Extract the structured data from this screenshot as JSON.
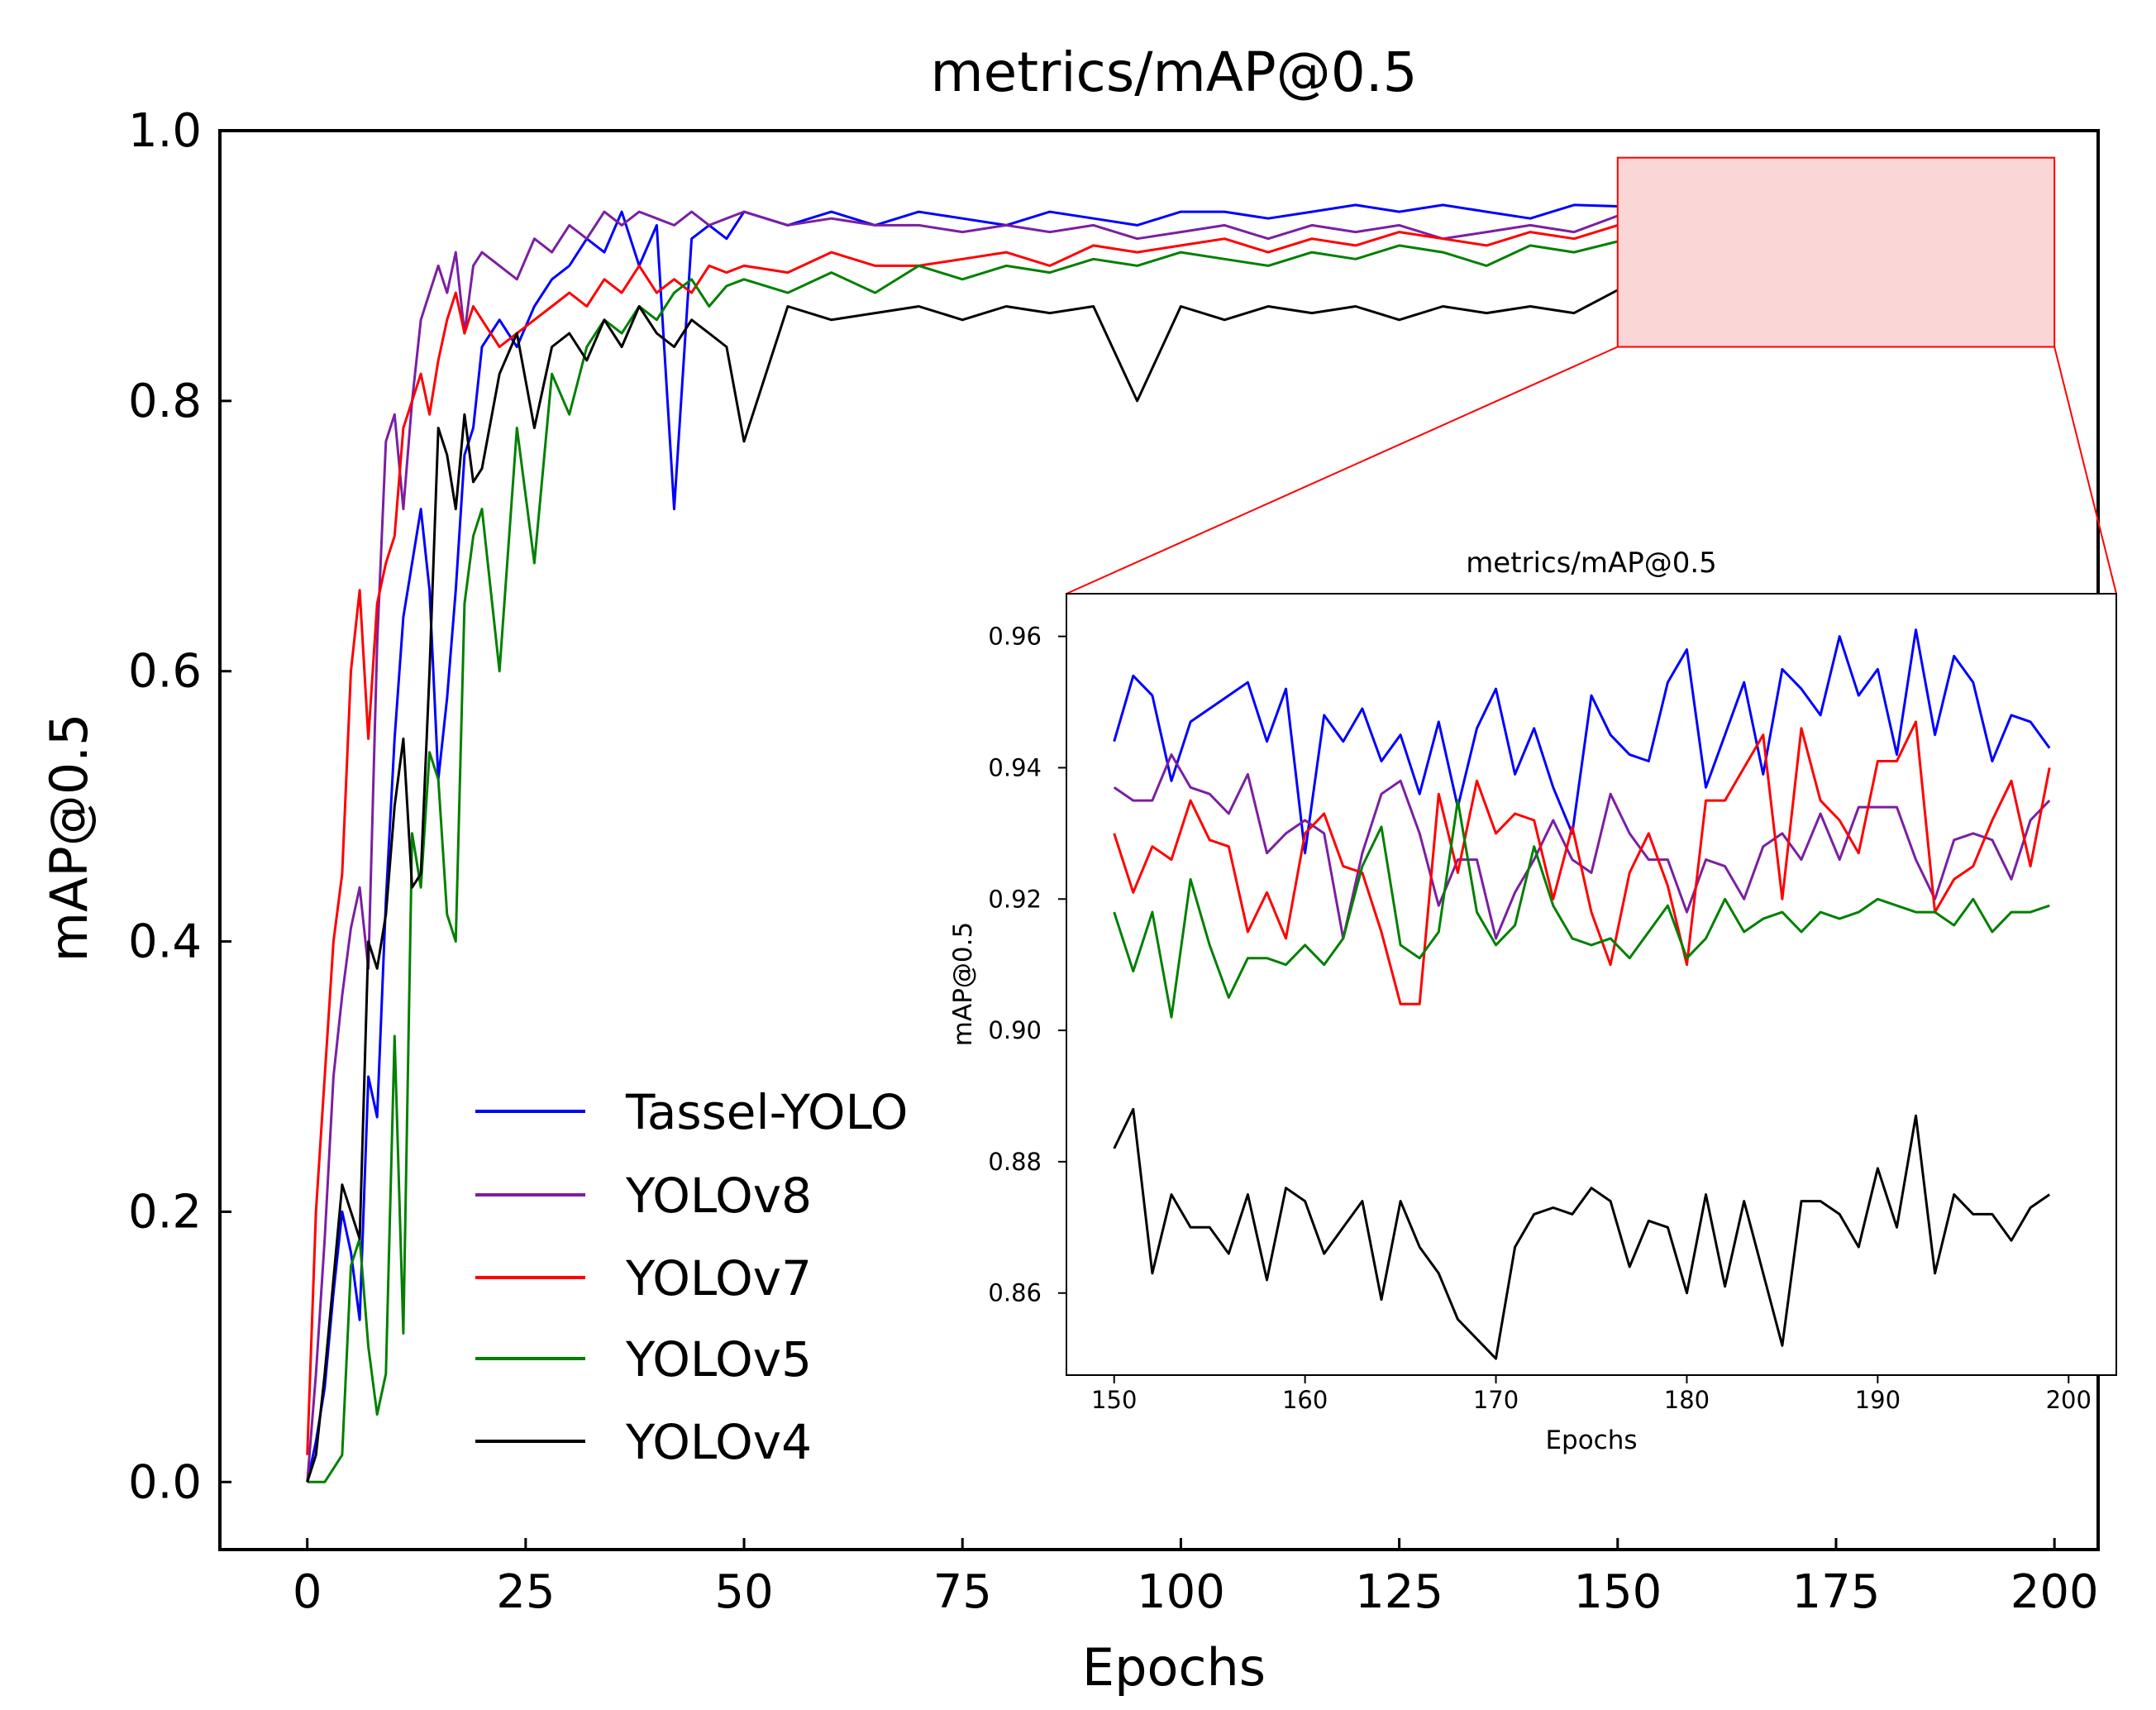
{
  "chart_data": [
    {
      "id": "main",
      "type": "line",
      "title": "metrics/mAP@0.5",
      "xlabel": "Epochs",
      "ylabel": "mAP@0.5",
      "xlim": [
        -10,
        205
      ],
      "ylim": [
        -0.05,
        1.0
      ],
      "xticks": [
        0,
        25,
        50,
        75,
        100,
        125,
        150,
        175,
        200
      ],
      "xtick_labels": [
        "0",
        "25",
        "50",
        "75",
        "100",
        "125",
        "150",
        "175",
        "200"
      ],
      "yticks": [
        0.0,
        0.2,
        0.4,
        0.6,
        0.8,
        1.0
      ],
      "ytick_labels": [
        "0.0",
        "0.2",
        "0.4",
        "0.6",
        "0.8",
        "1.0"
      ],
      "grid": false,
      "legend_position": "lower-left",
      "zoom_region": {
        "x": [
          150,
          200
        ],
        "y": [
          0.84,
          0.98
        ]
      },
      "series": [
        {
          "name": "Tassel-YOLO",
          "color": "#0000ff",
          "x": [
            0,
            1,
            2,
            3,
            4,
            5,
            6,
            7,
            8,
            9,
            10,
            11,
            12,
            13,
            14,
            15,
            16,
            17,
            18,
            19,
            20,
            22,
            24,
            26,
            28,
            30,
            32,
            34,
            36,
            38,
            40,
            42,
            44,
            46,
            48,
            50,
            55,
            60,
            65,
            70,
            75,
            80,
            85,
            90,
            95,
            100,
            105,
            110,
            115,
            120,
            125,
            130,
            135,
            140,
            145,
            150
          ],
          "values": [
            0.0,
            0.03,
            0.07,
            0.14,
            0.2,
            0.17,
            0.12,
            0.3,
            0.27,
            0.43,
            0.55,
            0.64,
            0.68,
            0.72,
            0.66,
            0.52,
            0.58,
            0.66,
            0.76,
            0.78,
            0.84,
            0.86,
            0.84,
            0.87,
            0.89,
            0.9,
            0.92,
            0.91,
            0.94,
            0.9,
            0.93,
            0.72,
            0.92,
            0.93,
            0.92,
            0.94,
            0.93,
            0.94,
            0.93,
            0.94,
            0.935,
            0.93,
            0.94,
            0.935,
            0.93,
            0.94,
            0.94,
            0.935,
            0.94,
            0.945,
            0.94,
            0.945,
            0.94,
            0.935,
            0.945,
            0.944
          ]
        },
        {
          "name": "YOLOv8",
          "color": "#7b1fa2",
          "x": [
            0,
            1,
            2,
            3,
            4,
            5,
            6,
            7,
            8,
            9,
            10,
            11,
            12,
            13,
            14,
            15,
            16,
            17,
            18,
            19,
            20,
            22,
            24,
            26,
            28,
            30,
            32,
            34,
            36,
            38,
            40,
            42,
            44,
            46,
            48,
            50,
            55,
            60,
            65,
            70,
            75,
            80,
            85,
            90,
            95,
            100,
            105,
            110,
            115,
            120,
            125,
            130,
            135,
            140,
            145,
            150
          ],
          "values": [
            0.0,
            0.08,
            0.18,
            0.3,
            0.36,
            0.41,
            0.44,
            0.38,
            0.62,
            0.77,
            0.79,
            0.72,
            0.8,
            0.86,
            0.88,
            0.9,
            0.88,
            0.91,
            0.85,
            0.9,
            0.91,
            0.9,
            0.89,
            0.92,
            0.91,
            0.93,
            0.92,
            0.94,
            0.93,
            0.94,
            0.935,
            0.93,
            0.94,
            0.93,
            0.935,
            0.94,
            0.93,
            0.935,
            0.93,
            0.93,
            0.925,
            0.93,
            0.925,
            0.93,
            0.92,
            0.925,
            0.93,
            0.92,
            0.93,
            0.925,
            0.93,
            0.92,
            0.925,
            0.93,
            0.925,
            0.937
          ]
        },
        {
          "name": "YOLOv7",
          "color": "#ff0000",
          "x": [
            0,
            1,
            2,
            3,
            4,
            5,
            6,
            7,
            8,
            9,
            10,
            11,
            12,
            13,
            14,
            15,
            16,
            17,
            18,
            19,
            20,
            22,
            24,
            26,
            28,
            30,
            32,
            34,
            36,
            38,
            40,
            42,
            44,
            46,
            48,
            50,
            55,
            60,
            65,
            70,
            75,
            80,
            85,
            90,
            95,
            100,
            105,
            110,
            115,
            120,
            125,
            130,
            135,
            140,
            145,
            150
          ],
          "values": [
            0.02,
            0.2,
            0.3,
            0.4,
            0.45,
            0.6,
            0.66,
            0.55,
            0.65,
            0.68,
            0.7,
            0.78,
            0.8,
            0.82,
            0.79,
            0.83,
            0.86,
            0.88,
            0.85,
            0.87,
            0.86,
            0.84,
            0.85,
            0.86,
            0.87,
            0.88,
            0.87,
            0.89,
            0.88,
            0.9,
            0.88,
            0.89,
            0.88,
            0.9,
            0.895,
            0.9,
            0.895,
            0.91,
            0.9,
            0.9,
            0.905,
            0.91,
            0.9,
            0.915,
            0.91,
            0.915,
            0.92,
            0.91,
            0.92,
            0.915,
            0.925,
            0.92,
            0.915,
            0.925,
            0.92,
            0.93
          ]
        },
        {
          "name": "YOLOv5",
          "color": "#008000",
          "x": [
            0,
            1,
            2,
            3,
            4,
            5,
            6,
            7,
            8,
            9,
            10,
            11,
            12,
            13,
            14,
            15,
            16,
            17,
            18,
            19,
            20,
            22,
            24,
            26,
            28,
            30,
            32,
            34,
            36,
            38,
            40,
            42,
            44,
            46,
            48,
            50,
            55,
            60,
            65,
            70,
            75,
            80,
            85,
            90,
            95,
            100,
            105,
            110,
            115,
            120,
            125,
            130,
            135,
            140,
            145,
            150
          ],
          "values": [
            0.0,
            0.0,
            0.0,
            0.01,
            0.02,
            0.16,
            0.18,
            0.1,
            0.05,
            0.08,
            0.33,
            0.11,
            0.48,
            0.44,
            0.54,
            0.52,
            0.42,
            0.4,
            0.65,
            0.7,
            0.72,
            0.6,
            0.78,
            0.68,
            0.82,
            0.79,
            0.84,
            0.86,
            0.85,
            0.87,
            0.86,
            0.88,
            0.89,
            0.87,
            0.885,
            0.89,
            0.88,
            0.895,
            0.88,
            0.9,
            0.89,
            0.9,
            0.895,
            0.905,
            0.9,
            0.91,
            0.905,
            0.9,
            0.91,
            0.905,
            0.915,
            0.91,
            0.9,
            0.915,
            0.91,
            0.918
          ]
        },
        {
          "name": "YOLOv4",
          "color": "#000000",
          "x": [
            0,
            1,
            2,
            3,
            4,
            5,
            6,
            7,
            8,
            9,
            10,
            11,
            12,
            13,
            14,
            15,
            16,
            17,
            18,
            19,
            20,
            22,
            24,
            26,
            28,
            30,
            32,
            34,
            36,
            38,
            40,
            42,
            44,
            46,
            48,
            50,
            55,
            60,
            65,
            70,
            75,
            80,
            85,
            90,
            95,
            100,
            105,
            110,
            115,
            120,
            125,
            130,
            135,
            140,
            145,
            150
          ],
          "values": [
            0.0,
            0.02,
            0.08,
            0.15,
            0.22,
            0.2,
            0.18,
            0.4,
            0.38,
            0.42,
            0.5,
            0.55,
            0.44,
            0.45,
            0.6,
            0.78,
            0.76,
            0.72,
            0.79,
            0.74,
            0.75,
            0.82,
            0.85,
            0.78,
            0.84,
            0.85,
            0.83,
            0.86,
            0.84,
            0.87,
            0.85,
            0.84,
            0.86,
            0.85,
            0.84,
            0.77,
            0.87,
            0.86,
            0.865,
            0.87,
            0.86,
            0.87,
            0.865,
            0.87,
            0.8,
            0.87,
            0.86,
            0.87,
            0.865,
            0.87,
            0.86,
            0.87,
            0.865,
            0.87,
            0.865,
            0.882
          ]
        }
      ]
    },
    {
      "id": "inset",
      "type": "line",
      "title": "metrics/mAP@0.5",
      "xlabel": "Epochs",
      "ylabel": "mAP@0.5",
      "xlim": [
        147.5,
        202.5
      ],
      "ylim": [
        0.8475,
        0.9665
      ],
      "xticks": [
        150,
        160,
        170,
        180,
        190,
        200
      ],
      "xtick_labels": [
        "150",
        "160",
        "170",
        "180",
        "190",
        "200"
      ],
      "yticks": [
        0.86,
        0.88,
        0.9,
        0.92,
        0.94,
        0.96
      ],
      "ytick_labels": [
        "0.86",
        "0.88",
        "0.90",
        "0.92",
        "0.94",
        "0.96"
      ],
      "grid": false,
      "x": [
        150,
        151,
        152,
        153,
        154,
        155,
        156,
        157,
        158,
        159,
        160,
        161,
        162,
        163,
        164,
        165,
        166,
        167,
        168,
        169,
        170,
        171,
        172,
        173,
        174,
        175,
        176,
        177,
        178,
        179,
        180,
        181,
        182,
        183,
        184,
        185,
        186,
        187,
        188,
        189,
        190,
        191,
        192,
        193,
        194,
        195,
        196,
        197,
        198,
        199
      ],
      "series": [
        {
          "name": "Tassel-YOLO",
          "color": "#0000ff",
          "values": [
            0.944,
            0.954,
            0.951,
            0.938,
            0.947,
            0.949,
            0.951,
            0.953,
            0.944,
            0.952,
            0.927,
            0.948,
            0.944,
            0.949,
            0.941,
            0.945,
            0.936,
            0.947,
            0.934,
            0.946,
            0.952,
            0.939,
            0.946,
            0.937,
            0.93,
            0.951,
            0.945,
            0.942,
            0.941,
            0.953,
            0.958,
            0.937,
            0.945,
            0.953,
            0.939,
            0.955,
            0.952,
            0.948,
            0.96,
            0.951,
            0.955,
            0.942,
            0.961,
            0.945,
            0.957,
            0.953,
            0.941,
            0.948,
            0.947,
            0.943
          ]
        },
        {
          "name": "YOLOv8",
          "color": "#7b1fa2",
          "values": [
            0.937,
            0.935,
            0.935,
            0.942,
            0.937,
            0.936,
            0.933,
            0.939,
            0.927,
            0.93,
            0.932,
            0.93,
            0.914,
            0.927,
            0.936,
            0.938,
            0.93,
            0.919,
            0.926,
            0.926,
            0.914,
            0.921,
            0.926,
            0.932,
            0.926,
            0.924,
            0.936,
            0.93,
            0.926,
            0.926,
            0.918,
            0.926,
            0.925,
            0.92,
            0.928,
            0.93,
            0.926,
            0.933,
            0.926,
            0.934,
            0.934,
            0.934,
            0.926,
            0.92,
            0.929,
            0.93,
            0.929,
            0.923,
            0.932,
            0.935
          ]
        },
        {
          "name": "YOLOv7",
          "color": "#ff0000",
          "values": [
            0.93,
            0.921,
            0.928,
            0.926,
            0.935,
            0.929,
            0.928,
            0.915,
            0.921,
            0.914,
            0.93,
            0.933,
            0.925,
            0.924,
            0.915,
            0.904,
            0.904,
            0.936,
            0.924,
            0.938,
            0.93,
            0.933,
            0.932,
            0.92,
            0.931,
            0.918,
            0.91,
            0.924,
            0.93,
            0.922,
            0.91,
            0.935,
            0.935,
            0.94,
            0.945,
            0.92,
            0.946,
            0.935,
            0.932,
            0.927,
            0.941,
            0.941,
            0.947,
            0.918,
            0.923,
            0.925,
            0.932,
            0.938,
            0.925,
            0.94
          ]
        },
        {
          "name": "YOLOv5",
          "color": "#008000",
          "values": [
            0.918,
            0.909,
            0.918,
            0.902,
            0.923,
            0.913,
            0.905,
            0.911,
            0.911,
            0.91,
            0.913,
            0.91,
            0.914,
            0.925,
            0.931,
            0.913,
            0.911,
            0.915,
            0.935,
            0.918,
            0.913,
            0.916,
            0.928,
            0.919,
            0.914,
            0.913,
            0.914,
            0.911,
            0.915,
            0.919,
            0.911,
            0.914,
            0.92,
            0.915,
            0.917,
            0.918,
            0.915,
            0.918,
            0.917,
            0.918,
            0.92,
            0.919,
            0.918,
            0.918,
            0.916,
            0.92,
            0.915,
            0.918,
            0.918,
            0.919
          ]
        },
        {
          "name": "YOLOv4",
          "color": "#000000",
          "values": [
            0.882,
            0.888,
            0.863,
            0.875,
            0.87,
            0.87,
            0.866,
            0.875,
            0.862,
            0.876,
            0.874,
            0.866,
            0.87,
            0.874,
            0.859,
            0.874,
            0.867,
            0.863,
            0.856,
            0.853,
            0.85,
            0.867,
            0.872,
            0.873,
            0.872,
            0.876,
            0.874,
            0.864,
            0.871,
            0.87,
            0.86,
            0.875,
            0.861,
            0.874,
            0.863,
            0.852,
            0.874,
            0.874,
            0.872,
            0.867,
            0.879,
            0.87,
            0.887,
            0.863,
            0.875,
            0.872,
            0.872,
            0.868,
            0.873,
            0.875
          ]
        }
      ]
    }
  ]
}
